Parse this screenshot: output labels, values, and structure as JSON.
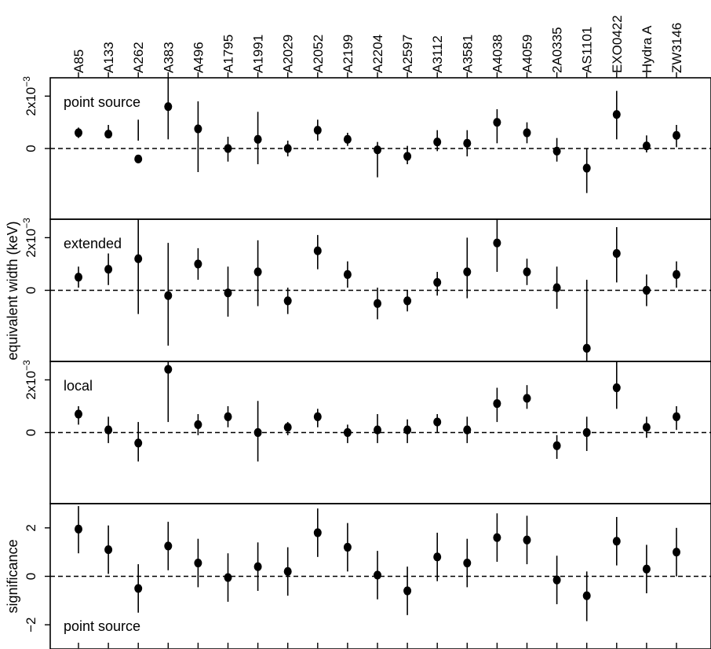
{
  "chart_data": {
    "type": "scatter",
    "categories": [
      "A85",
      "A133",
      "A262",
      "A383",
      "A496",
      "A1795",
      "A1991",
      "A2029",
      "A2052",
      "A2199",
      "A2204",
      "A2597",
      "A3112",
      "A3581",
      "A4038",
      "A4059",
      "2A0335",
      "AS1101",
      "EXO0422",
      "Hydra A",
      "ZW3146"
    ],
    "ylabel": "equivalent width (keV)",
    "panels": [
      {
        "label": "point source",
        "ylim": [
          -0.0027,
          0.0027
        ],
        "yticks": [
          {
            "v": 0,
            "label": "0"
          },
          {
            "v": 0.002,
            "label": "2x10",
            "exp": "−3"
          }
        ],
        "values": [
          0.0006,
          0.00055,
          -0.0004,
          0.0016,
          0.00075,
          0.0,
          0.00035,
          0.0,
          0.0007,
          0.00035,
          -5e-05,
          -0.0003,
          0.00025,
          0.0002,
          0.001,
          0.0006,
          -0.0001,
          -0.00075,
          0.0013,
          0.0001,
          0.0005
        ],
        "err_low": [
          0.0004,
          0.0004,
          0.0011,
          0.00035,
          -0.0009,
          -0.0005,
          -0.0006,
          -0.0003,
          0.0003,
          0.0001,
          -0.0011,
          -0.0006,
          -0.0001,
          -0.0003,
          0.0002,
          0.0002,
          -0.0005,
          -0.0017,
          0.00035,
          -0.00015,
          5e-05
        ],
        "err_high": [
          0.0008,
          0.0009,
          0.0003,
          0.0027,
          0.0018,
          0.00045,
          0.0014,
          0.0003,
          0.0011,
          0.0006,
          0.00025,
          0.0001,
          0.0007,
          0.0007,
          0.0015,
          0.001,
          0.0004,
          0.0,
          0.0022,
          0.0005,
          0.0009
        ]
      },
      {
        "label": "extended",
        "ylim": [
          -0.0027,
          0.0027
        ],
        "yticks": [
          {
            "v": 0,
            "label": "0"
          },
          {
            "v": 0.002,
            "label": "2x10",
            "exp": "−3"
          }
        ],
        "values": [
          0.0005,
          0.0008,
          0.0012,
          -0.0002,
          0.001,
          -0.0001,
          0.0007,
          -0.0004,
          0.0015,
          0.0006,
          -0.0005,
          -0.0004,
          0.0003,
          0.0007,
          0.0018,
          0.0007,
          0.0001,
          -0.0022,
          0.0014,
          0.0,
          0.0006
        ],
        "err_low": [
          0.0001,
          0.0002,
          -0.0009,
          -0.0021,
          0.0004,
          -0.001,
          -0.0006,
          -0.0009,
          0.0008,
          0.0001,
          -0.0011,
          -0.0008,
          -0.0002,
          -0.0003,
          0.0007,
          0.0002,
          -0.0007,
          -0.0027,
          0.0003,
          -0.0006,
          0.0001
        ],
        "err_high": [
          0.0009,
          0.0014,
          0.0027,
          0.0018,
          0.0016,
          0.0009,
          0.0019,
          0.0001,
          0.0021,
          0.0011,
          0.0001,
          0.0,
          0.0007,
          0.002,
          0.0027,
          0.0012,
          0.0009,
          0.0004,
          0.0024,
          0.0006,
          0.0011
        ]
      },
      {
        "label": "local",
        "ylim": [
          -0.0027,
          0.0027
        ],
        "yticks": [
          {
            "v": 0,
            "label": "0"
          },
          {
            "v": 0.002,
            "label": "2x10",
            "exp": "−3"
          }
        ],
        "values": [
          0.0007,
          0.0001,
          -0.0004,
          0.0024,
          0.0003,
          0.0006,
          0.0,
          0.0002,
          0.0006,
          0.0,
          0.0001,
          0.0001,
          0.0004,
          0.0001,
          0.0011,
          0.0013,
          -0.0005,
          0.0,
          0.0017,
          0.0002,
          0.0006
        ],
        "err_low": [
          0.0003,
          -0.0004,
          -0.0011,
          0.0004,
          -0.0001,
          0.0002,
          -0.0011,
          -0.0001,
          0.0002,
          -0.0004,
          -0.0004,
          -0.0004,
          0.0,
          -0.0004,
          0.0004,
          0.0009,
          -0.001,
          -0.0007,
          0.0009,
          -0.0002,
          0.0001
        ],
        "err_high": [
          0.001,
          0.0006,
          0.0004,
          0.0028,
          0.0007,
          0.001,
          0.0012,
          0.0004,
          0.0009,
          0.0003,
          0.0007,
          0.0005,
          0.0007,
          0.0006,
          0.0017,
          0.0018,
          -0.0001,
          0.0006,
          0.0028,
          0.0006,
          0.001
        ]
      },
      {
        "label": "point source",
        "ylim": [
          -3.0,
          3.0
        ],
        "yticks": [
          {
            "v": -2,
            "label": "−2"
          },
          {
            "v": 0,
            "label": "0"
          },
          {
            "v": 2,
            "label": "2"
          }
        ],
        "ylabel": "significance",
        "values": [
          1.95,
          1.1,
          -0.5,
          1.25,
          0.55,
          -0.05,
          0.4,
          0.2,
          1.8,
          1.2,
          0.05,
          -0.6,
          0.8,
          0.55,
          1.6,
          1.5,
          -0.15,
          -0.8,
          1.45,
          0.3,
          1.0
        ],
        "err_low": [
          0.95,
          0.1,
          -1.5,
          0.25,
          -0.45,
          -1.05,
          -0.6,
          -0.8,
          0.8,
          0.2,
          -0.95,
          -1.6,
          -0.2,
          -0.45,
          0.6,
          0.5,
          -1.15,
          -1.85,
          0.45,
          -0.7,
          0.0
        ],
        "err_high": [
          2.9,
          2.1,
          0.5,
          2.25,
          1.55,
          0.95,
          1.4,
          1.2,
          2.8,
          2.2,
          1.05,
          0.4,
          1.8,
          1.55,
          2.6,
          2.5,
          0.85,
          0.2,
          2.45,
          1.3,
          2.0
        ]
      }
    ]
  }
}
